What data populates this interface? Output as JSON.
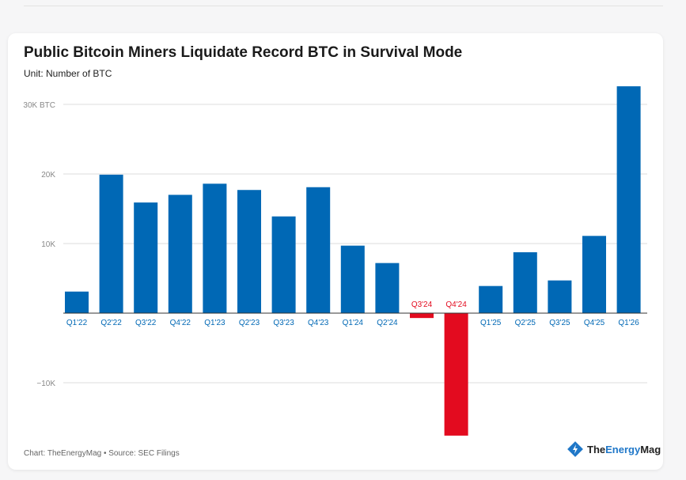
{
  "chart_data": {
    "type": "bar",
    "title": "Public Bitcoin Miners Liquidate Record BTC in Survival Mode",
    "subtitle": "Unit: Number of BTC",
    "categories": [
      "Q1'22",
      "Q2'22",
      "Q3'22",
      "Q4'22",
      "Q1'23",
      "Q2'23",
      "Q3'23",
      "Q4'23",
      "Q1'24",
      "Q2'24",
      "Q3'24",
      "Q4'24",
      "Q1'25",
      "Q2'25",
      "Q3'25",
      "Q4'25",
      "Q1'26"
    ],
    "values": [
      3100,
      19900,
      15900,
      17000,
      18600,
      17700,
      13900,
      18100,
      9700,
      7200,
      -700,
      -17600,
      3900,
      8750,
      4700,
      11100,
      32600
    ],
    "ylim": [
      -18000,
      33000
    ],
    "yticks": [
      {
        "value": 30000,
        "label": "30K BTC"
      },
      {
        "value": 20000,
        "label": "20K"
      },
      {
        "value": 10000,
        "label": "10K"
      },
      {
        "value": -10000,
        "label": "−10K"
      }
    ],
    "grid": true,
    "colors": {
      "positive": "#0068b5",
      "negative": "#e30b1f"
    }
  },
  "footer": "Chart: TheEnergyMag • Source: SEC Filings",
  "logo": {
    "part1": "The",
    "part2": "Energy",
    "part3": "Mag"
  }
}
